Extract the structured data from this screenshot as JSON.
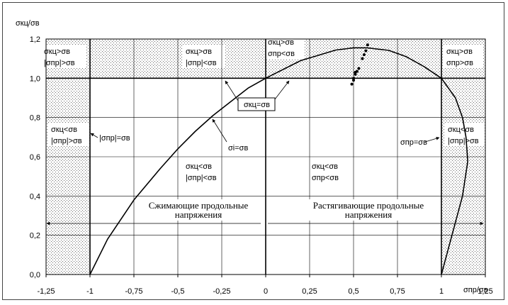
{
  "chart_data": {
    "type": "line",
    "ylabel": "σкц/σв",
    "xlabel": "σпр/σв",
    "xlim": [
      -1.25,
      1.25
    ],
    "ylim": [
      0,
      1.2
    ],
    "x_ticks": [
      "-1,25",
      "-1",
      "-0,75",
      "-0,5",
      "-0,25",
      "0",
      "0,25",
      "0,5",
      "0,75",
      "1",
      "1,25"
    ],
    "x_tick_values": [
      -1.25,
      -1,
      -0.75,
      -0.5,
      -0.25,
      0,
      0.25,
      0.5,
      0.75,
      1,
      1.25
    ],
    "y_ticks": [
      "0,0",
      "0,2",
      "0,4",
      "0,6",
      "0,8",
      "1,0",
      "1,2"
    ],
    "y_tick_values": [
      0,
      0.2,
      0.4,
      0.6,
      0.8,
      1.0,
      1.2
    ],
    "grid": true,
    "series": [
      {
        "curve": "von Mises ellipse",
        "x": [
          -1.0,
          -0.9,
          -0.75,
          -0.6,
          -0.5,
          -0.4,
          -0.3,
          -0.2,
          -0.1,
          0.0,
          0.2,
          0.4,
          0.5,
          0.577,
          0.7,
          0.8,
          0.9,
          1.0,
          1.08,
          1.12,
          1.14,
          1.15,
          1.12,
          1.0
        ],
        "y": [
          0.0,
          0.18,
          0.38,
          0.54,
          0.64,
          0.73,
          0.81,
          0.88,
          0.95,
          1.0,
          1.09,
          1.144,
          1.155,
          1.155,
          1.142,
          1.11,
          1.06,
          1.0,
          0.9,
          0.8,
          0.7,
          0.577,
          0.4,
          0.0
        ]
      }
    ],
    "points": {
      "x": [
        0.49,
        0.5,
        0.51,
        0.52,
        0.53,
        0.55,
        0.56,
        0.57,
        0.58,
        0.5,
        0.51
      ],
      "y": [
        0.97,
        0.99,
        1.02,
        1.035,
        1.05,
        1.1,
        1.12,
        1.14,
        1.17,
        1.0,
        1.03
      ]
    },
    "hatched_regions": [
      "|x| > 1",
      "y > 1"
    ],
    "annotations": {
      "top_left": [
        "σкц>σв",
        "|σпр|>σв"
      ],
      "top_mid_left": [
        "σкц>σв",
        "|σпр|<σв"
      ],
      "top_mid_right": [
        "σкц>σв",
        "σпр<σв"
      ],
      "top_right": [
        "σкц>σв",
        "σпр>σв"
      ],
      "mid_left": [
        "σкц<σв",
        "|σпр|>σв"
      ],
      "mid_right": [
        "σкц<σв",
        "|σпр|>σв"
      ],
      "center_left": [
        "σкц<σв",
        "|σпр|<σв"
      ],
      "center_right": [
        "σкц<σв",
        "σпр<σв"
      ],
      "label_left_vertical": "|σпр|=σв",
      "label_right_vertical": "σпр=σв",
      "label_si": "σi=σв",
      "box_label": "σкц=σв",
      "compress_title_1": "Сжимающие продольные",
      "compress_title_2": "напряжения",
      "tension_title_1": "Растягивающие продольные",
      "tension_title_2": "напряжения"
    }
  }
}
